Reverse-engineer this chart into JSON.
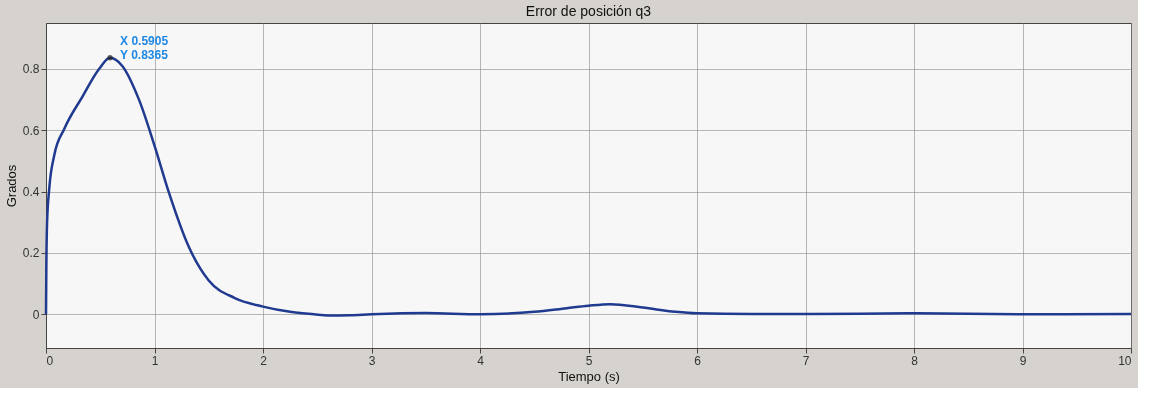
{
  "chart_data": {
    "type": "line",
    "title": "Error de posición q3",
    "xlabel": "Tiempo (s)",
    "ylabel": "Grados",
    "x": [
      0,
      0.003,
      0.01,
      0.03,
      0.077,
      0.169,
      0.336,
      0.489,
      0.5905,
      0.703,
      0.857,
      1.0,
      1.13,
      1.316,
      1.5,
      1.74,
      2.0,
      2.25,
      2.47,
      2.6,
      2.8,
      3.0,
      3.5,
      4.0,
      4.5,
      4.8,
      5.0,
      5.2,
      5.5,
      5.8,
      6.0,
      6.5,
      7.0,
      8.0,
      9.0,
      10.0
    ],
    "series": [
      {
        "color": "#1f3a8f",
        "values": [
          0,
          0.15,
          0.3,
          0.41,
          0.52,
          0.605,
          0.71,
          0.8,
          0.8365,
          0.81,
          0.7,
          0.55,
          0.4,
          0.22,
          0.11,
          0.053,
          0.025,
          0.008,
          0.0,
          -0.004,
          -0.003,
          0.0,
          0.004,
          0.0,
          0.008,
          0.02,
          0.028,
          0.033,
          0.022,
          0.008,
          0.003,
          0.001,
          0.001,
          0.003,
          0.0,
          0.001
        ]
      }
    ],
    "xlim": [
      0,
      10
    ],
    "xticks": [
      0,
      1,
      2,
      3,
      4,
      5,
      6,
      7,
      8,
      9,
      10
    ],
    "ylim": [
      -0.11,
      0.95
    ],
    "yticks": [
      0,
      0.2,
      0.4,
      0.6,
      0.8
    ],
    "grid": true,
    "marker": "none",
    "line_style": "solid",
    "annotations": [
      {
        "text": "X 0.5905\nY 0.8365",
        "x": 0.5905,
        "y": 0.8365
      }
    ]
  }
}
